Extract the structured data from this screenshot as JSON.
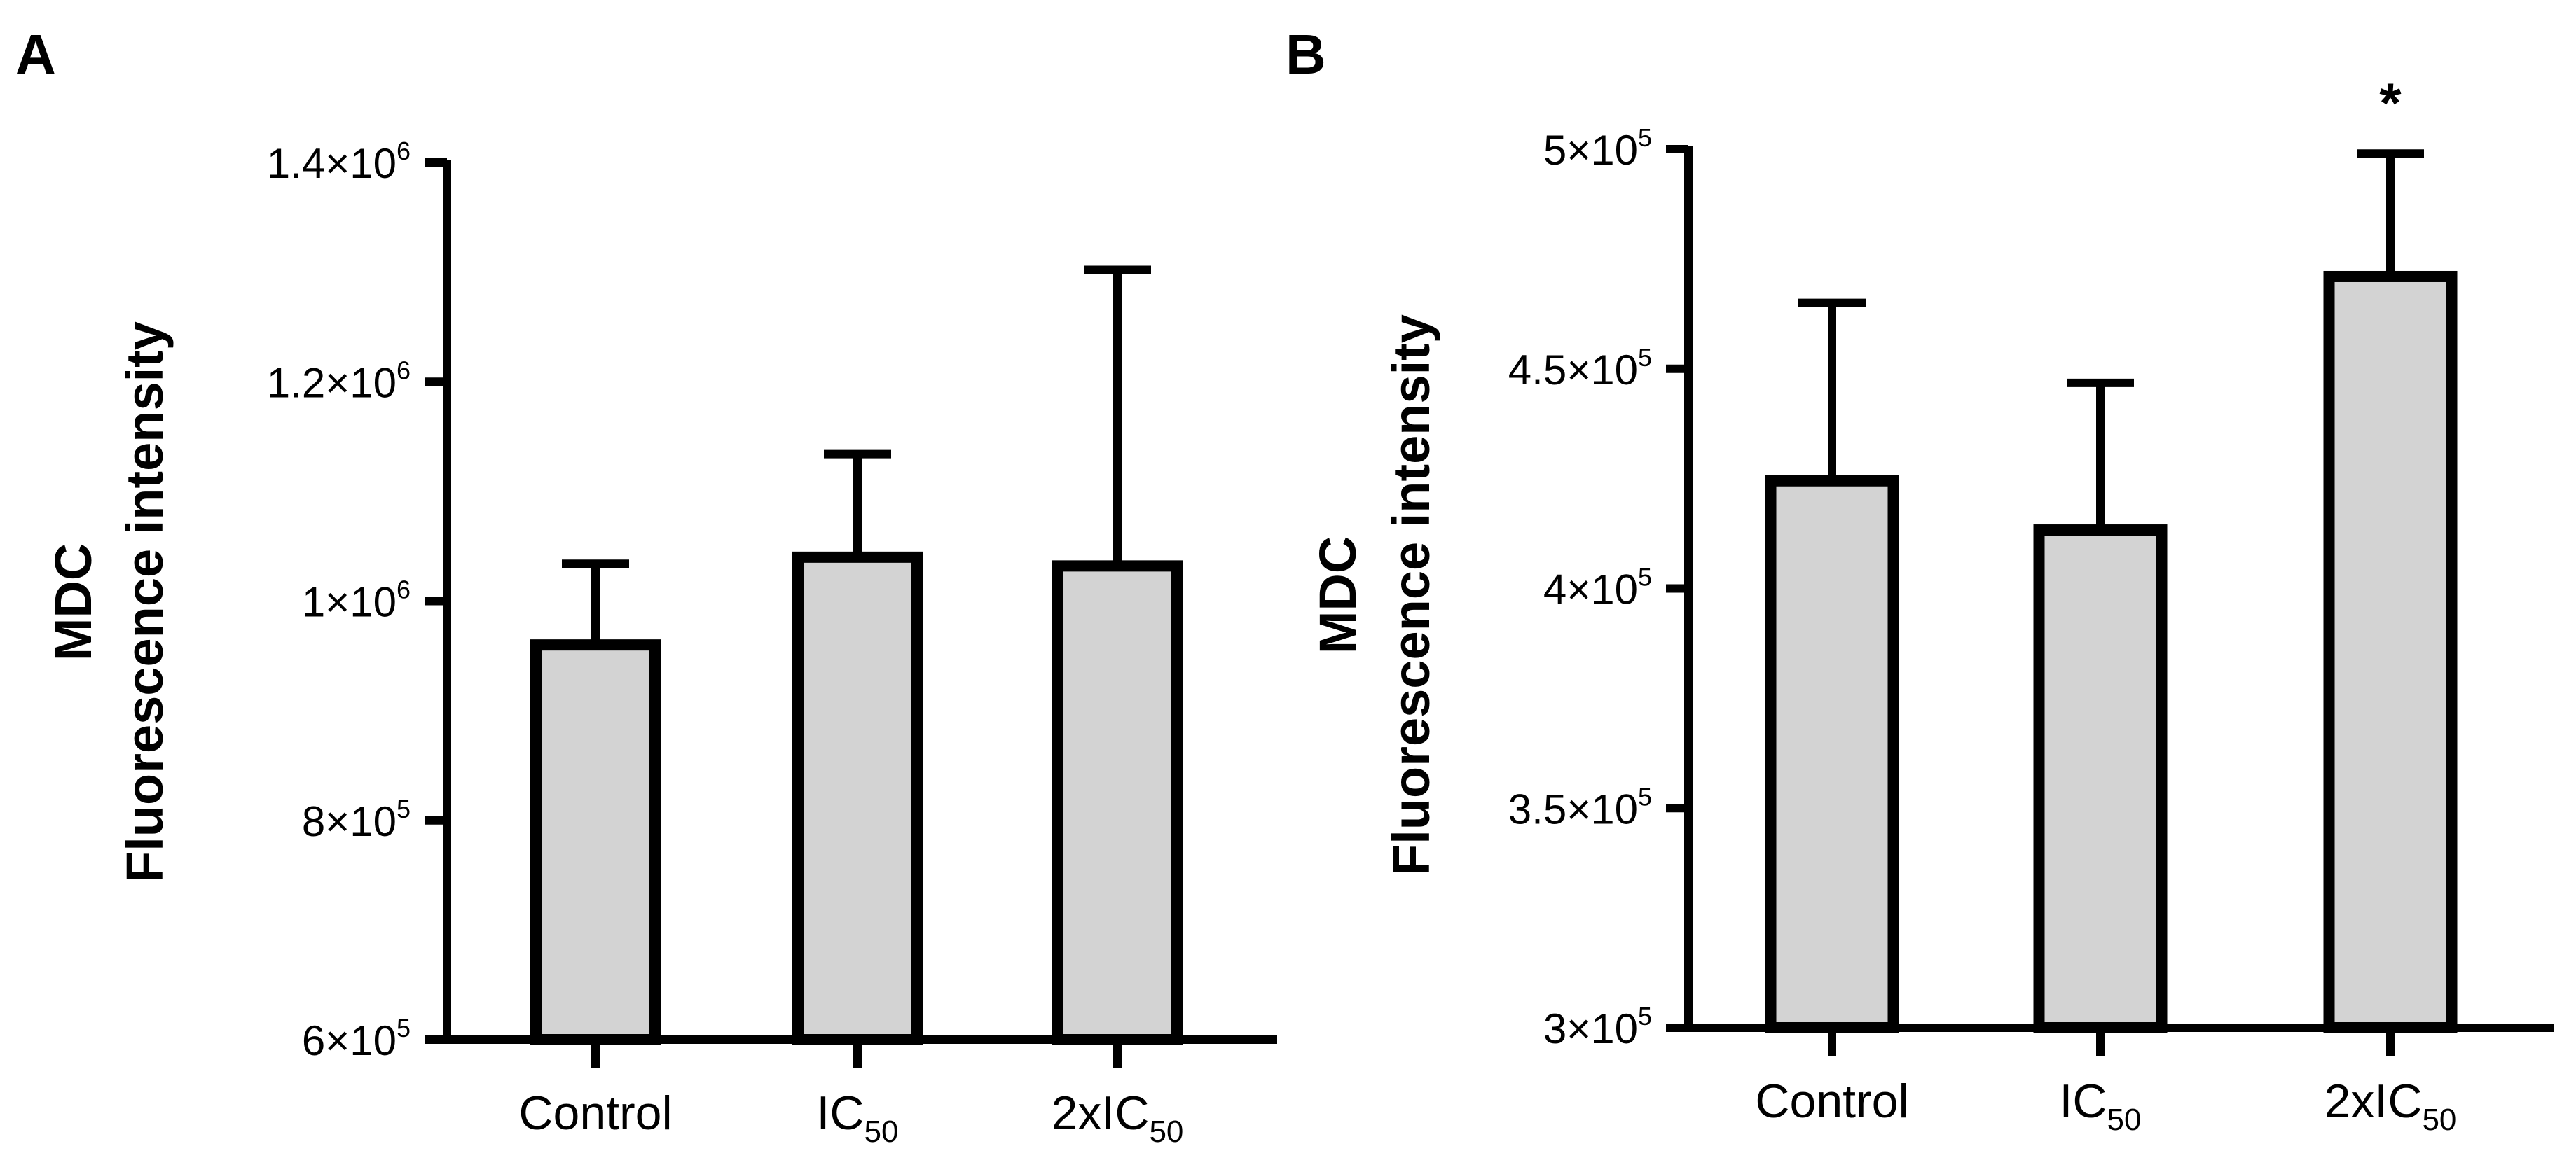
{
  "chart_data": [
    {
      "panel": "A",
      "type": "bar",
      "title": "",
      "xlabel": "",
      "ylabel": [
        "MDC",
        "Fluorescence intensity"
      ],
      "ylim": [
        600000,
        1400000
      ],
      "yticks": [
        600000,
        800000,
        1000000,
        1200000,
        1400000
      ],
      "ytick_labels": [
        {
          "base": "6×10",
          "exp": "5"
        },
        {
          "base": "8×10",
          "exp": "5"
        },
        {
          "base": "1×10",
          "exp": "6"
        },
        {
          "base": "1.2×10",
          "exp": "6"
        },
        {
          "base": "1.4×10",
          "exp": "6"
        }
      ],
      "categories": [
        {
          "main": "Control",
          "sub": ""
        },
        {
          "main": "IC",
          "sub": "50"
        },
        {
          "main": "2xIC",
          "sub": "50"
        }
      ],
      "values": [
        960000,
        1040000,
        1032000
      ],
      "error_upper": [
        1034000,
        1134000,
        1302000
      ],
      "significance": [
        "",
        "",
        ""
      ],
      "bar_fill": "#d3d3d3",
      "bar_stroke": "#000000",
      "grid": false
    },
    {
      "panel": "B",
      "type": "bar",
      "title": "",
      "xlabel": "",
      "ylabel": [
        "MDC",
        "Fluorescence intensity"
      ],
      "ylim": [
        300000,
        500000
      ],
      "yticks": [
        300000,
        350000,
        400000,
        450000,
        500000
      ],
      "ytick_labels": [
        {
          "base": "3×10",
          "exp": "5"
        },
        {
          "base": "3.5×10",
          "exp": "5"
        },
        {
          "base": "4×10",
          "exp": "5"
        },
        {
          "base": "4.5×10",
          "exp": "5"
        },
        {
          "base": "5×10",
          "exp": "5"
        }
      ],
      "categories": [
        {
          "main": "Control",
          "sub": ""
        },
        {
          "main": "IC",
          "sub": "50"
        },
        {
          "main": "2xIC",
          "sub": "50"
        }
      ],
      "values": [
        424500,
        413300,
        471000
      ],
      "error_upper": [
        465000,
        446800,
        499000
      ],
      "significance": [
        "",
        "",
        "*"
      ],
      "bar_fill": "#d3d3d3",
      "bar_stroke": "#000000",
      "grid": false
    }
  ]
}
